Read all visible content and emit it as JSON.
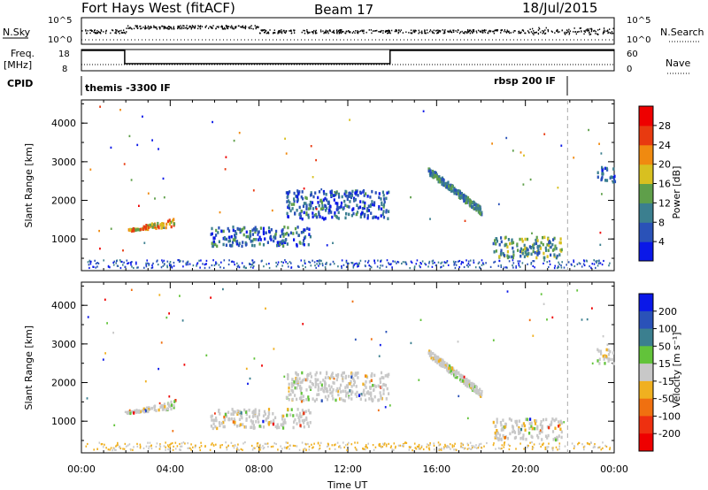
{
  "header": {
    "station": "Fort Hays West (fitACF)",
    "beam": "Beam 17",
    "date": "18/Jul/2015"
  },
  "summary_panels": {
    "nsky_label": "N.Sky",
    "nsky_ticks": [
      "10^5",
      "10^0"
    ],
    "nsearch_label": "N.Search",
    "nsearch_ticks_right": [
      "10^5",
      "10^0"
    ],
    "freq_label": "Freq.",
    "freq_unit": "[MHz]",
    "freq_ticks": [
      "18",
      "8"
    ],
    "nave_label": "Nave",
    "nave_ticks_right": [
      "60",
      "0"
    ],
    "cpid_label": "CPID",
    "cpid_segments": [
      {
        "label": "themis -3300 IF",
        "start_hour": 0
      },
      {
        "label": "rbsp 200 IF",
        "start_hour": 21.9
      }
    ]
  },
  "chart_data": [
    {
      "type": "heatmap",
      "quantity": "Power",
      "ylabel": "Slant Range [km]",
      "xlabel": "",
      "xlim": [
        0,
        24
      ],
      "ylim": [
        180,
        4600
      ],
      "yticks": [
        "1000",
        "2000",
        "3000",
        "4000"
      ],
      "xticks": [
        "00:00",
        "04:00",
        "08:00",
        "12:00",
        "16:00",
        "20:00",
        "00:00"
      ],
      "colorbar": {
        "label": "Power [dB]",
        "ticks": [
          "4",
          "8",
          "12",
          "16",
          "20",
          "24",
          "28"
        ],
        "colors": [
          "#0a18e8",
          "#2a52b8",
          "#3b7f8f",
          "#5f9f4a",
          "#d8c020",
          "#f08a10",
          "#e83a10",
          "#ee0000"
        ]
      },
      "echo_regions": [
        {
          "t_start": 2.0,
          "t_end": 4.2,
          "r_start": 1200,
          "r_end": 1650,
          "mean_power_db": 20
        },
        {
          "t_start": 5.8,
          "t_end": 10.3,
          "r_start": 850,
          "r_end": 1350,
          "mean_power_db": 8
        },
        {
          "t_start": 9.2,
          "t_end": 13.8,
          "r_start": 1550,
          "r_end": 2300,
          "mean_power_db": 7
        },
        {
          "t_start": 15.6,
          "t_end": 18.0,
          "r_start": 1650,
          "r_end": 2900,
          "mean_power_db": 10
        },
        {
          "t_start": 18.5,
          "t_end": 21.6,
          "r_start": 550,
          "r_end": 1100,
          "mean_power_db": 12
        },
        {
          "t_start": 23.2,
          "t_end": 24.0,
          "r_start": 2500,
          "r_end": 2900,
          "mean_power_db": 6
        }
      ]
    },
    {
      "type": "heatmap",
      "quantity": "Velocity",
      "ylabel": "Slant Range [km]",
      "xlabel": "Time UT",
      "xlim": [
        0,
        24
      ],
      "ylim": [
        180,
        4600
      ],
      "yticks": [
        "1000",
        "2000",
        "3000",
        "4000"
      ],
      "xticks": [
        "00:00",
        "04:00",
        "08:00",
        "12:00",
        "16:00",
        "20:00",
        "00:00"
      ],
      "colorbar": {
        "label": "Velocity [m s⁻¹]",
        "ticks": [
          "200",
          "100",
          "50",
          "15",
          "-15",
          "-50",
          "-100",
          "-200"
        ],
        "colors": [
          "#0a18e8",
          "#2a52b8",
          "#3b7f8f",
          "#62c33a",
          "#c8c8c8",
          "#f0b020",
          "#f07010",
          "#ee3010",
          "#ee0000"
        ]
      },
      "echo_regions": [
        {
          "t_start": 2.0,
          "t_end": 4.2,
          "r_start": 1200,
          "r_end": 1650,
          "mean_velocity": -20
        },
        {
          "t_start": 5.8,
          "t_end": 10.3,
          "r_start": 850,
          "r_end": 1350,
          "mean_velocity": 0
        },
        {
          "t_start": 9.2,
          "t_end": 13.8,
          "r_start": 1550,
          "r_end": 2300,
          "mean_velocity": 0
        },
        {
          "t_start": 15.6,
          "t_end": 18.0,
          "r_start": 1650,
          "r_end": 2900,
          "mean_velocity": 0
        },
        {
          "t_start": 18.5,
          "t_end": 21.6,
          "r_start": 550,
          "r_end": 1100,
          "mean_velocity": 0
        },
        {
          "t_start": 23.2,
          "t_end": 24.0,
          "r_start": 2500,
          "r_end": 2900,
          "mean_velocity": 0
        }
      ]
    }
  ],
  "colors": {
    "axis": "#000000",
    "dashed_line": "#aaaaaa"
  }
}
